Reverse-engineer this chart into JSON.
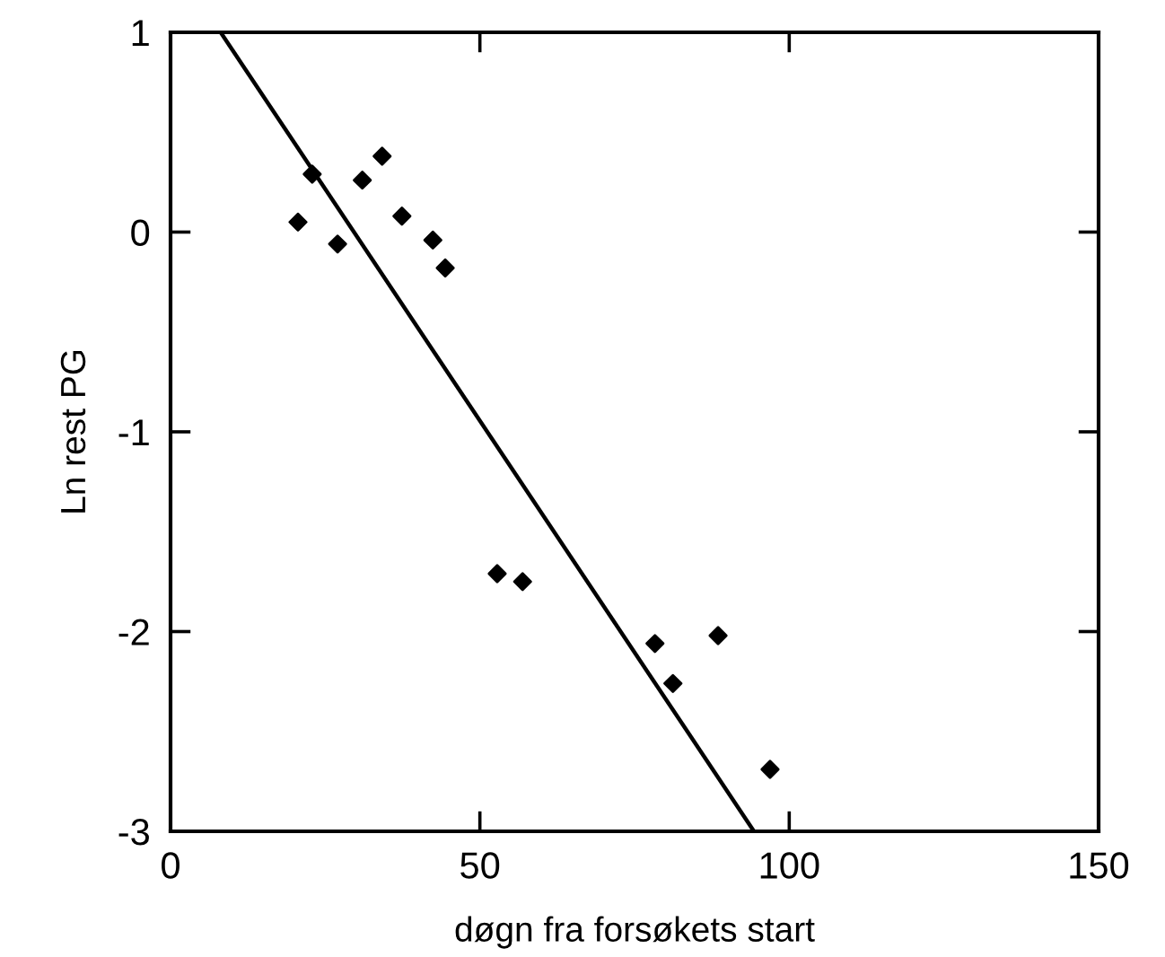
{
  "chart_data": {
    "type": "scatter",
    "xlabel": "døgn fra forsøkets start",
    "ylabel": "Ln rest PG",
    "xlim": [
      0,
      150
    ],
    "ylim": [
      -3,
      1
    ],
    "xticks": [
      0,
      50,
      100,
      150
    ],
    "yticks": [
      -3,
      -2,
      -1,
      0,
      1
    ],
    "grid": false,
    "legend": false,
    "series": [
      {
        "marker": "diamond",
        "color": "#000000",
        "x": [
          20.6,
          22.9,
          27,
          31,
          34.2,
          37.4,
          42.4,
          44.4,
          52.8,
          56.9,
          78.3,
          81.2,
          88.5,
          96.9
        ],
        "values": [
          0.05,
          0.29,
          -0.06,
          0.26,
          0.38,
          0.08,
          -0.04,
          -0.18,
          -1.71,
          -1.75,
          -2.06,
          -2.26,
          -2.02,
          -2.69
        ]
      },
      {
        "type": "line",
        "marker": "none",
        "color": "#000000",
        "line_style": "solid",
        "x": [
          8.1,
          94.3
        ],
        "values": [
          1,
          -3
        ]
      }
    ]
  }
}
